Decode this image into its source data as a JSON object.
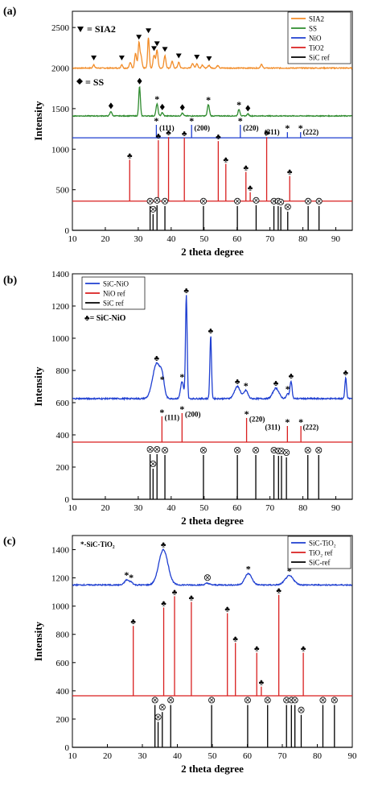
{
  "chart_data": [
    {
      "type": "line",
      "panel_label": "(a)",
      "xlabel": "2 theta degree",
      "ylabel": "Intensity",
      "xlim": [
        10,
        95
      ],
      "ylim": [
        0,
        2700
      ],
      "xticks": [
        10,
        20,
        30,
        40,
        50,
        60,
        70,
        80,
        90
      ],
      "yticks": [
        0,
        500,
        1000,
        1500,
        2000,
        2500
      ],
      "legend_position": "top-right",
      "legend": [
        {
          "label": "SIA2",
          "color": "#F28C28"
        },
        {
          "label": "SS",
          "color": "#2E8B2E"
        },
        {
          "label": "NiO",
          "color": "#1F3FD1"
        },
        {
          "label": "TiO2",
          "color": "#D91F1F"
        },
        {
          "label": "SiC ref",
          "color": "#000000"
        }
      ],
      "annotations": [
        "▼ = SIA2",
        "♦= SS"
      ],
      "series": [
        {
          "name": "SIA2",
          "color": "#F28C28",
          "kind": "pattern",
          "baseline": 2000,
          "noise": 6,
          "peaks": [
            [
              16.5,
              45,
              0.25
            ],
            [
              25,
              45,
              0.25
            ],
            [
              27.6,
              70,
              0.3
            ],
            [
              29.2,
              180,
              0.3
            ],
            [
              30.2,
              300,
              0.25
            ],
            [
              30.8,
              150,
              0.3
            ],
            [
              33.1,
              380,
              0.25
            ],
            [
              34.8,
              160,
              0.3
            ],
            [
              35.7,
              220,
              0.3
            ],
            [
              38.1,
              150,
              0.3
            ],
            [
              40.3,
              80,
              0.3
            ],
            [
              42.3,
              70,
              0.3
            ],
            [
              46.5,
              60,
              0.3
            ],
            [
              47.8,
              55,
              0.3
            ],
            [
              49.5,
              40,
              0.3
            ],
            [
              51.5,
              35,
              0.3
            ],
            [
              54.2,
              35,
              0.3
            ],
            [
              67.4,
              45,
              0.3
            ]
          ]
        },
        {
          "name": "SS",
          "color": "#2E8B2E",
          "kind": "pattern",
          "baseline": 1410,
          "noise": 5,
          "peaks": [
            [
              21.7,
              55,
              0.3
            ],
            [
              30.4,
              360,
              0.25
            ],
            [
              35.7,
              150,
              0.3
            ],
            [
              37.3,
              40,
              0.3
            ],
            [
              43.4,
              35,
              0.3
            ],
            [
              51.3,
              140,
              0.3
            ],
            [
              60.6,
              80,
              0.3
            ],
            [
              63.3,
              25,
              0.3
            ]
          ]
        },
        {
          "name": "NiO",
          "color": "#1F3FD1",
          "kind": "sticks",
          "baseline": 1140,
          "sticks": [
            [
              35.5,
              1300
            ],
            [
              46.2,
              1300
            ],
            [
              61.0,
              1300
            ],
            [
              75.3,
              1210
            ],
            [
              79.3,
              1210
            ]
          ]
        },
        {
          "name": "TiO2",
          "color": "#D91F1F",
          "kind": "sticks",
          "baseline": 360,
          "sticks": [
            [
              27.4,
              870
            ],
            [
              36.1,
              1110
            ],
            [
              39.2,
              1150
            ],
            [
              44.0,
              1140
            ],
            [
              54.3,
              1100
            ],
            [
              56.6,
              820
            ],
            [
              62.7,
              720
            ],
            [
              64.0,
              470
            ],
            [
              69.0,
              1150
            ],
            [
              76.0,
              670
            ]
          ]
        },
        {
          "name": "SiC ref",
          "color": "#000000",
          "kind": "sticks",
          "baseline": 0,
          "sticks": [
            [
              33.6,
              300
            ],
            [
              34.5,
              200
            ],
            [
              35.7,
              310
            ],
            [
              38.1,
              300
            ],
            [
              49.8,
              300
            ],
            [
              60.1,
              300
            ],
            [
              65.8,
              310
            ],
            [
              71.2,
              300
            ],
            [
              72.5,
              300
            ],
            [
              73.3,
              290
            ],
            [
              75.4,
              230
            ],
            [
              81.6,
              300
            ],
            [
              84.9,
              300
            ]
          ]
        }
      ],
      "marker_labels": [
        {
          "text": "(111)",
          "x": 36.4,
          "y": 1230
        },
        {
          "text": "(200)",
          "x": 47.0,
          "y": 1230
        },
        {
          "text": "(220)",
          "x": 61.8,
          "y": 1230
        },
        {
          "text": "(311)",
          "x": 68.3,
          "y": 1180
        },
        {
          "text": "(222)",
          "x": 80.0,
          "y": 1180
        }
      ]
    },
    {
      "type": "line",
      "panel_label": "(b)",
      "xlabel": "2 theta degree",
      "ylabel": "Intensity",
      "xlim": [
        10,
        95
      ],
      "ylim": [
        0,
        1400
      ],
      "xticks": [
        10,
        20,
        30,
        40,
        50,
        60,
        70,
        80,
        90
      ],
      "yticks": [
        0,
        200,
        400,
        600,
        800,
        1000,
        1200,
        1400
      ],
      "legend_position": "top-left",
      "legend": [
        {
          "label": "SiC-NiO",
          "color": "#1F3FD1"
        },
        {
          "label": "NiO ref",
          "color": "#D91F1F"
        },
        {
          "label": "SiC ref",
          "color": "#000000"
        }
      ],
      "annotations": [
        "♣= SiC-NiO"
      ],
      "series": [
        {
          "name": "SiC-NiO",
          "color": "#1F3FD1",
          "kind": "pattern",
          "baseline": 625,
          "noise": 4,
          "peaks": [
            [
              35.6,
              220,
              1.2
            ],
            [
              37.3,
              90,
              0.6
            ],
            [
              43.3,
              105,
              0.45
            ],
            [
              44.6,
              640,
              0.25
            ],
            [
              52.0,
              390,
              0.25
            ],
            [
              60.1,
              75,
              0.9
            ],
            [
              62.7,
              50,
              0.6
            ],
            [
              71.8,
              65,
              0.9
            ],
            [
              75.4,
              30,
              0.4
            ],
            [
              76.4,
              110,
              0.3
            ],
            [
              93.0,
              130,
              0.25
            ]
          ]
        },
        {
          "name": "NiO ref",
          "color": "#D91F1F",
          "kind": "sticks",
          "baseline": 355,
          "sticks": [
            [
              37.2,
              515
            ],
            [
              43.3,
              535
            ],
            [
              62.9,
              505
            ],
            [
              75.3,
              455
            ],
            [
              79.4,
              455
            ]
          ]
        },
        {
          "name": "SiC ref",
          "color": "#000000",
          "kind": "sticks",
          "baseline": 0,
          "sticks": [
            [
              33.6,
              280
            ],
            [
              34.5,
              190
            ],
            [
              35.7,
              280
            ],
            [
              38.1,
              275
            ],
            [
              49.8,
              275
            ],
            [
              60.1,
              275
            ],
            [
              65.7,
              275
            ],
            [
              71.2,
              275
            ],
            [
              72.6,
              270
            ],
            [
              73.5,
              270
            ],
            [
              75.0,
              260
            ],
            [
              81.5,
              275
            ],
            [
              84.8,
              275
            ]
          ]
        }
      ],
      "marker_labels": [
        {
          "text": "(111)",
          "x": 38.0,
          "y": 492
        },
        {
          "text": "(200)",
          "x": 44.2,
          "y": 512
        },
        {
          "text": "(220)",
          "x": 63.7,
          "y": 482
        },
        {
          "text": "(311)",
          "x": 68.5,
          "y": 432
        },
        {
          "text": "(222)",
          "x": 80.0,
          "y": 432
        }
      ]
    },
    {
      "type": "line",
      "panel_label": "(c)",
      "xlabel": "2 theta degree",
      "ylabel": "Intensity",
      "xlim": [
        10,
        90
      ],
      "ylim": [
        0,
        1500
      ],
      "xticks": [
        10,
        20,
        30,
        40,
        50,
        60,
        70,
        80,
        90
      ],
      "yticks": [
        0,
        200,
        400,
        600,
        800,
        1000,
        1200,
        1400
      ],
      "legend_position": "top-right",
      "legend": [
        {
          "label": "SiC-TiO₂",
          "color": "#1F3FD1"
        },
        {
          "label": "TiO₂ ref",
          "color": "#D91F1F"
        },
        {
          "label": "SiC-ref",
          "color": "#000000"
        }
      ],
      "annotations": [
        "*-SiC-TiO₂"
      ],
      "series": [
        {
          "name": "SiC-TiO2",
          "color": "#1F3FD1",
          "kind": "pattern",
          "baseline": 1150,
          "noise": 4,
          "peaks": [
            [
              25.5,
              35,
              0.6
            ],
            [
              26.8,
              20,
              0.5
            ],
            [
              36.0,
              250,
              1.3
            ],
            [
              48.6,
              12,
              0.6
            ],
            [
              60.3,
              80,
              1.0
            ],
            [
              72.0,
              65,
              1.2
            ]
          ]
        },
        {
          "name": "TiO2 ref",
          "color": "#D91F1F",
          "kind": "sticks",
          "baseline": 365,
          "sticks": [
            [
              27.4,
              860
            ],
            [
              36.1,
              990
            ],
            [
              39.2,
              1070
            ],
            [
              44.0,
              1030
            ],
            [
              54.3,
              950
            ],
            [
              56.6,
              740
            ],
            [
              62.7,
              670
            ],
            [
              64.0,
              430
            ],
            [
              69.0,
              1080
            ],
            [
              76.0,
              670
            ]
          ]
        },
        {
          "name": "SiC-ref",
          "color": "#000000",
          "kind": "sticks",
          "baseline": 0,
          "sticks": [
            [
              33.6,
              300
            ],
            [
              34.5,
              180
            ],
            [
              35.7,
              250
            ],
            [
              38.1,
              300
            ],
            [
              49.8,
              300
            ],
            [
              60.1,
              300
            ],
            [
              65.8,
              300
            ],
            [
              71.2,
              300
            ],
            [
              72.6,
              300
            ],
            [
              73.6,
              300
            ],
            [
              75.4,
              230
            ],
            [
              81.6,
              300
            ],
            [
              84.9,
              300
            ]
          ]
        }
      ],
      "marker_labels": []
    }
  ]
}
